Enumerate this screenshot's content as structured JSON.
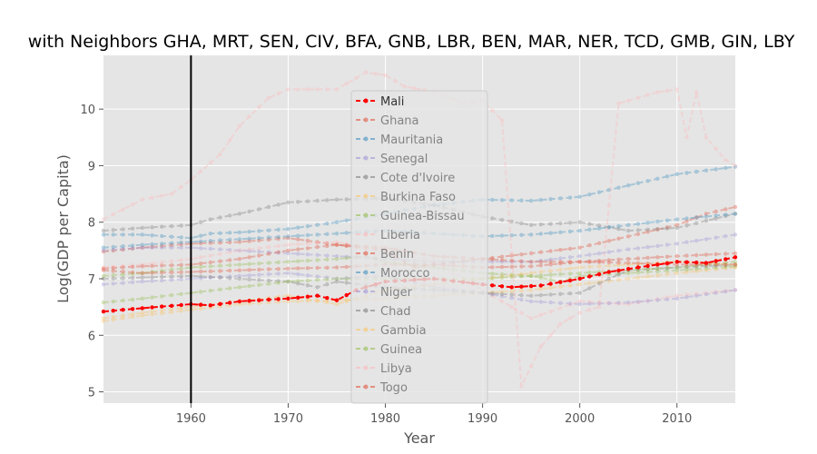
{
  "chart_data": {
    "type": "line",
    "title": "with Neighbors GHA, MRT, SEN, CIV, BFA, GNB, LBR, BEN, MAR, NER, TCD, GMB, GIN, LBY",
    "xlabel": "Year",
    "ylabel": "Log(GDP per Capita)",
    "xlim": [
      1951,
      2016
    ],
    "ylim": [
      4.8,
      10.95
    ],
    "xticks": [
      "1960",
      "1970",
      "1980",
      "1990",
      "2000",
      "2010"
    ],
    "yticks": [
      "5",
      "6",
      "7",
      "8",
      "9",
      "10"
    ],
    "vline_x": 1960,
    "grid": true,
    "legend_position": "center",
    "series": [
      {
        "name": "Mali",
        "color": "#ff0000",
        "highlight": true,
        "points": [
          [
            1951,
            6.42
          ],
          [
            1955,
            6.48
          ],
          [
            1960,
            6.55
          ],
          [
            1962,
            6.53
          ],
          [
            1965,
            6.6
          ],
          [
            1970,
            6.65
          ],
          [
            1973,
            6.7
          ],
          [
            1975,
            6.62
          ],
          [
            1977,
            6.8
          ],
          [
            1980,
            6.95
          ],
          [
            1985,
            7.0
          ],
          [
            1990,
            6.9
          ],
          [
            1993,
            6.85
          ],
          [
            1996,
            6.88
          ],
          [
            2000,
            7.0
          ],
          [
            2003,
            7.12
          ],
          [
            2006,
            7.2
          ],
          [
            2010,
            7.3
          ],
          [
            2013,
            7.28
          ],
          [
            2016,
            7.38
          ]
        ]
      },
      {
        "name": "Ghana",
        "color": "#e24a33",
        "points": [
          [
            1951,
            7.48
          ],
          [
            1955,
            7.55
          ],
          [
            1960,
            7.62
          ],
          [
            1965,
            7.65
          ],
          [
            1970,
            7.72
          ],
          [
            1975,
            7.6
          ],
          [
            1980,
            7.5
          ],
          [
            1983,
            7.2
          ],
          [
            1985,
            7.25
          ],
          [
            1990,
            7.35
          ],
          [
            1995,
            7.45
          ],
          [
            2000,
            7.55
          ],
          [
            2005,
            7.75
          ],
          [
            2010,
            7.95
          ],
          [
            2013,
            8.15
          ],
          [
            2016,
            8.27
          ]
        ]
      },
      {
        "name": "Mauritania",
        "color": "#348abd",
        "points": [
          [
            1951,
            7.78
          ],
          [
            1955,
            7.78
          ],
          [
            1960,
            7.72
          ],
          [
            1962,
            7.8
          ],
          [
            1965,
            7.82
          ],
          [
            1970,
            7.88
          ],
          [
            1975,
            8.0
          ],
          [
            1980,
            8.15
          ],
          [
            1985,
            8.3
          ],
          [
            1990,
            8.4
          ],
          [
            1995,
            8.38
          ],
          [
            2000,
            8.45
          ],
          [
            2005,
            8.65
          ],
          [
            2010,
            8.85
          ],
          [
            2016,
            8.98
          ]
        ]
      },
      {
        "name": "Senegal",
        "color": "#988ed5",
        "points": [
          [
            1951,
            7.5
          ],
          [
            1955,
            7.55
          ],
          [
            1960,
            7.55
          ],
          [
            1965,
            7.5
          ],
          [
            1970,
            7.45
          ],
          [
            1975,
            7.4
          ],
          [
            1980,
            7.35
          ],
          [
            1985,
            7.3
          ],
          [
            1990,
            7.3
          ],
          [
            1995,
            7.3
          ],
          [
            2000,
            7.4
          ],
          [
            2005,
            7.52
          ],
          [
            2010,
            7.62
          ],
          [
            2016,
            7.78
          ]
        ]
      },
      {
        "name": "Cote d'Ivoire",
        "color": "#777777",
        "points": [
          [
            1951,
            7.85
          ],
          [
            1955,
            7.9
          ],
          [
            1960,
            7.95
          ],
          [
            1962,
            8.05
          ],
          [
            1965,
            8.15
          ],
          [
            1970,
            8.35
          ],
          [
            1975,
            8.4
          ],
          [
            1980,
            8.42
          ],
          [
            1985,
            8.3
          ],
          [
            1990,
            8.1
          ],
          [
            1995,
            7.95
          ],
          [
            2000,
            8.0
          ],
          [
            2005,
            7.85
          ],
          [
            2010,
            7.9
          ],
          [
            2016,
            8.15
          ]
        ]
      },
      {
        "name": "Burkina Faso",
        "color": "#fbc15e",
        "points": [
          [
            1951,
            6.25
          ],
          [
            1955,
            6.35
          ],
          [
            1960,
            6.45
          ],
          [
            1965,
            6.55
          ],
          [
            1970,
            6.6
          ],
          [
            1975,
            6.62
          ],
          [
            1980,
            6.65
          ],
          [
            1985,
            6.7
          ],
          [
            1990,
            6.75
          ],
          [
            1995,
            6.8
          ],
          [
            2000,
            6.9
          ],
          [
            2005,
            7.0
          ],
          [
            2010,
            7.1
          ],
          [
            2016,
            7.2
          ]
        ]
      },
      {
        "name": "Guinea-Bissau",
        "color": "#8eba42",
        "points": [
          [
            1951,
            7.05
          ],
          [
            1955,
            7.1
          ],
          [
            1960,
            7.2
          ],
          [
            1965,
            7.25
          ],
          [
            1970,
            7.3
          ],
          [
            1975,
            7.35
          ],
          [
            1978,
            7.4
          ],
          [
            1980,
            7.3
          ],
          [
            1985,
            7.2
          ],
          [
            1990,
            7.1
          ],
          [
            1995,
            7.05
          ],
          [
            1998,
            6.95
          ],
          [
            2000,
            7.05
          ],
          [
            2005,
            7.1
          ],
          [
            2010,
            7.15
          ],
          [
            2016,
            7.22
          ]
        ]
      },
      {
        "name": "Liberia",
        "color": "#ffb5b8",
        "points": [
          [
            1951,
            7.2
          ],
          [
            1955,
            7.25
          ],
          [
            1960,
            7.35
          ],
          [
            1965,
            7.5
          ],
          [
            1970,
            7.6
          ],
          [
            1975,
            7.65
          ],
          [
            1980,
            7.5
          ],
          [
            1985,
            7.3
          ],
          [
            1990,
            6.8
          ],
          [
            1995,
            6.3
          ],
          [
            2000,
            6.6
          ],
          [
            2005,
            6.55
          ],
          [
            2010,
            6.7
          ],
          [
            2016,
            6.8
          ]
        ]
      },
      {
        "name": "Benin",
        "color": "#e24a33",
        "points": [
          [
            1951,
            7.15
          ],
          [
            1955,
            7.1
          ],
          [
            1960,
            7.12
          ],
          [
            1965,
            7.15
          ],
          [
            1970,
            7.18
          ],
          [
            1975,
            7.2
          ],
          [
            1980,
            7.25
          ],
          [
            1985,
            7.25
          ],
          [
            1990,
            7.2
          ],
          [
            1995,
            7.22
          ],
          [
            2000,
            7.3
          ],
          [
            2005,
            7.35
          ],
          [
            2010,
            7.4
          ],
          [
            2016,
            7.45
          ]
        ]
      },
      {
        "name": "Morocco",
        "color": "#348abd",
        "points": [
          [
            1951,
            7.55
          ],
          [
            1955,
            7.6
          ],
          [
            1960,
            7.65
          ],
          [
            1965,
            7.7
          ],
          [
            1970,
            7.75
          ],
          [
            1975,
            7.8
          ],
          [
            1980,
            7.85
          ],
          [
            1985,
            7.8
          ],
          [
            1990,
            7.75
          ],
          [
            1995,
            7.78
          ],
          [
            2000,
            7.85
          ],
          [
            2005,
            7.95
          ],
          [
            2010,
            8.05
          ],
          [
            2016,
            8.15
          ]
        ]
      },
      {
        "name": "Niger",
        "color": "#988ed5",
        "points": [
          [
            1951,
            6.9
          ],
          [
            1955,
            6.95
          ],
          [
            1960,
            7.0
          ],
          [
            1965,
            7.05
          ],
          [
            1970,
            7.1
          ],
          [
            1975,
            7.0
          ],
          [
            1980,
            7.05
          ],
          [
            1985,
            6.85
          ],
          [
            1990,
            6.75
          ],
          [
            1995,
            6.6
          ],
          [
            2000,
            6.55
          ],
          [
            2005,
            6.58
          ],
          [
            2010,
            6.65
          ],
          [
            2016,
            6.8
          ]
        ]
      },
      {
        "name": "Chad",
        "color": "#777777",
        "points": [
          [
            1951,
            7.0
          ],
          [
            1955,
            7.02
          ],
          [
            1960,
            7.05
          ],
          [
            1965,
            7.0
          ],
          [
            1970,
            6.95
          ],
          [
            1973,
            6.85
          ],
          [
            1975,
            6.95
          ],
          [
            1980,
            6.85
          ],
          [
            1985,
            6.8
          ],
          [
            1990,
            6.75
          ],
          [
            1995,
            6.7
          ],
          [
            2000,
            6.75
          ],
          [
            2003,
            7.0
          ],
          [
            2005,
            7.15
          ],
          [
            2010,
            7.2
          ],
          [
            2016,
            7.25
          ]
        ]
      },
      {
        "name": "Gambia",
        "color": "#fbc15e",
        "points": [
          [
            1951,
            6.3
          ],
          [
            1955,
            6.4
          ],
          [
            1960,
            6.5
          ],
          [
            1965,
            6.6
          ],
          [
            1970,
            6.7
          ],
          [
            1975,
            6.55
          ],
          [
            1980,
            6.8
          ],
          [
            1985,
            6.9
          ],
          [
            1990,
            7.0
          ],
          [
            1995,
            7.1
          ],
          [
            2000,
            7.2
          ],
          [
            2005,
            7.25
          ],
          [
            2010,
            7.3
          ],
          [
            2016,
            7.25
          ]
        ]
      },
      {
        "name": "Guinea",
        "color": "#8eba42",
        "points": [
          [
            1951,
            6.58
          ],
          [
            1955,
            6.65
          ],
          [
            1960,
            6.75
          ],
          [
            1965,
            6.85
          ],
          [
            1970,
            6.95
          ],
          [
            1975,
            7.0
          ],
          [
            1980,
            7.0
          ],
          [
            1985,
            7.0
          ],
          [
            1990,
            7.0
          ],
          [
            1995,
            7.05
          ],
          [
            2000,
            7.1
          ],
          [
            2005,
            7.15
          ],
          [
            2010,
            7.2
          ],
          [
            2016,
            7.3
          ]
        ]
      },
      {
        "name": "Libya",
        "color": "#ffb5b8",
        "points": [
          [
            1951,
            8.05
          ],
          [
            1955,
            8.4
          ],
          [
            1958,
            8.5
          ],
          [
            1960,
            8.75
          ],
          [
            1963,
            9.2
          ],
          [
            1965,
            9.7
          ],
          [
            1968,
            10.2
          ],
          [
            1970,
            10.35
          ],
          [
            1975,
            10.35
          ],
          [
            1978,
            10.65
          ],
          [
            1980,
            10.6
          ],
          [
            1982,
            10.4
          ],
          [
            1985,
            10.3
          ],
          [
            1988,
            10.1
          ],
          [
            1990,
            10.15
          ],
          [
            1992,
            9.8
          ],
          [
            1994,
            5.1
          ],
          [
            1996,
            5.8
          ],
          [
            1998,
            6.2
          ],
          [
            2000,
            6.4
          ],
          [
            2002,
            6.5
          ],
          [
            2004,
            10.1
          ],
          [
            2008,
            10.3
          ],
          [
            2010,
            10.35
          ],
          [
            2011,
            9.5
          ],
          [
            2012,
            10.3
          ],
          [
            2013,
            9.5
          ],
          [
            2015,
            9.1
          ],
          [
            2016,
            9.0
          ]
        ]
      },
      {
        "name": "Togo",
        "color": "#e24a33",
        "points": [
          [
            1951,
            7.18
          ],
          [
            1955,
            7.22
          ],
          [
            1960,
            7.25
          ],
          [
            1965,
            7.35
          ],
          [
            1970,
            7.5
          ],
          [
            1975,
            7.6
          ],
          [
            1980,
            7.55
          ],
          [
            1985,
            7.4
          ],
          [
            1990,
            7.35
          ],
          [
            1995,
            7.3
          ],
          [
            2000,
            7.3
          ],
          [
            2005,
            7.28
          ],
          [
            2010,
            7.25
          ],
          [
            2016,
            7.25
          ]
        ]
      }
    ]
  }
}
